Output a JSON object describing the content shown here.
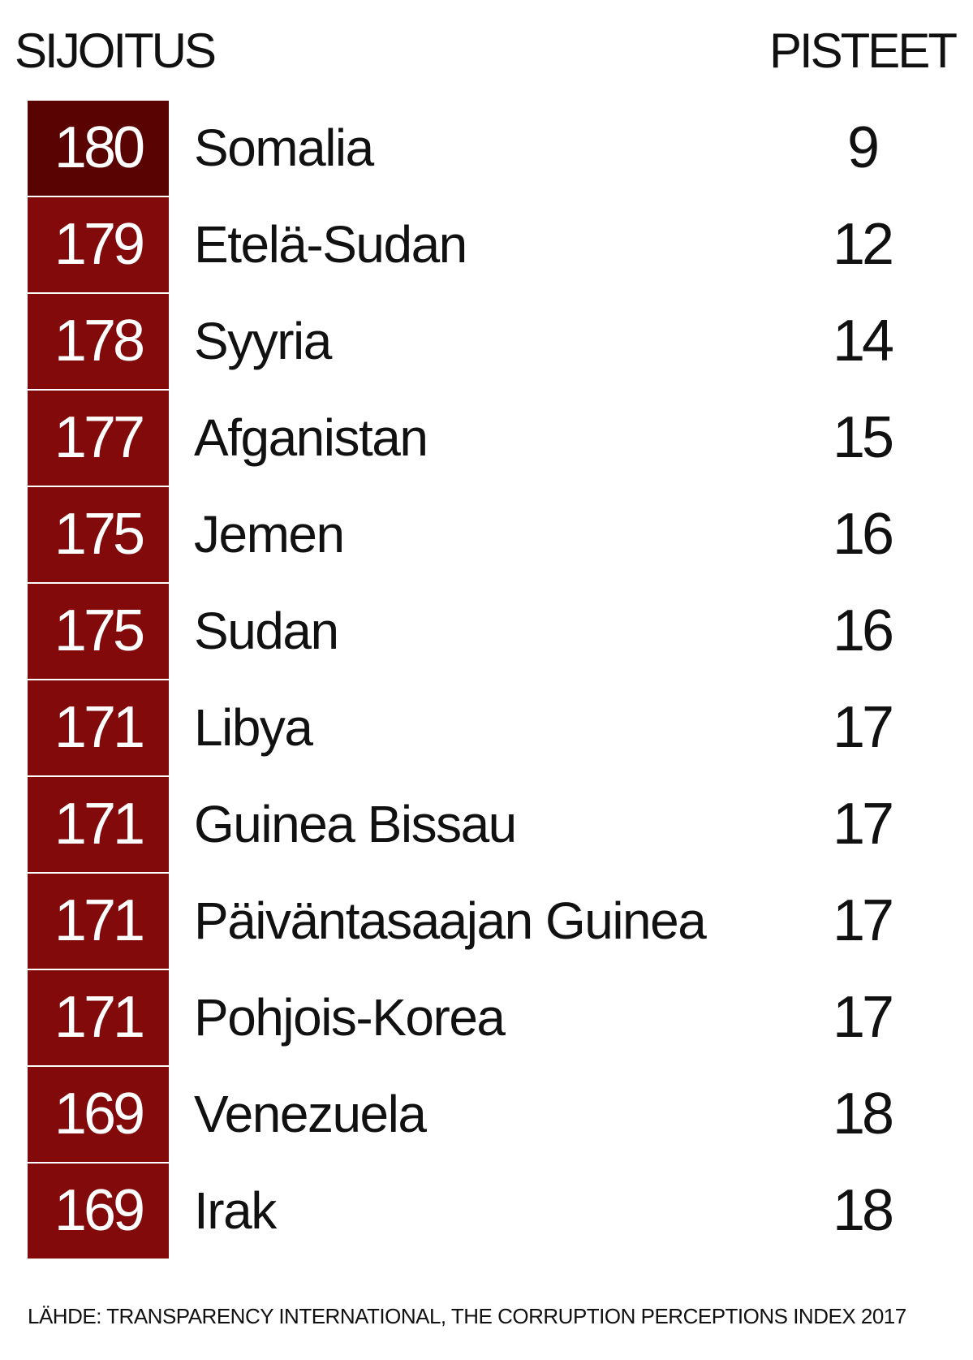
{
  "header": {
    "rank": "SIJOITUS",
    "score": "PISTEET"
  },
  "table": {
    "rows": [
      [
        180,
        "Somalia",
        9
      ],
      [
        179,
        "Etelä-Sudan",
        12
      ],
      [
        178,
        "Syyria",
        14
      ],
      [
        177,
        "Afganistan",
        15
      ],
      [
        175,
        "Jemen",
        16
      ],
      [
        175,
        "Sudan",
        16
      ],
      [
        171,
        "Libya",
        17
      ],
      [
        171,
        "Guinea Bissau",
        17
      ],
      [
        171,
        "Päiväntasaajan Guinea",
        17
      ],
      [
        171,
        "Pohjois-Korea",
        17
      ],
      [
        169,
        "Venezuela",
        18
      ],
      [
        169,
        "Irak",
        18
      ]
    ]
  },
  "source": "LÄHDE: TRANSPARENCY INTERNATIONAL, THE CORRUPTION PERCEPTIONS INDEX 2017"
}
